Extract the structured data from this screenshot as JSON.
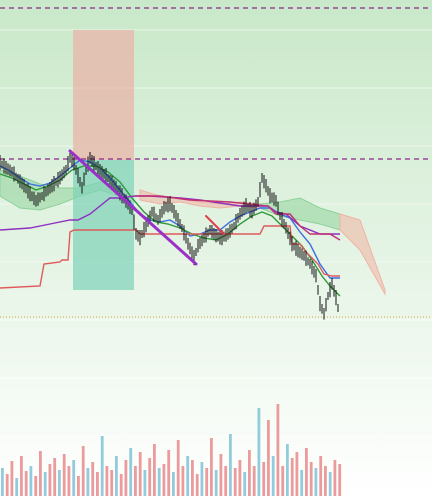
{
  "chart_data": {
    "type": "line",
    "title": "",
    "xlabel": "",
    "ylabel": "",
    "grid": true,
    "legend": "none",
    "x_range": [
      0,
      340
    ],
    "y_range": [
      0,
      496
    ],
    "background": {
      "top": "#c9e8c9",
      "bottom": "#ffffff"
    },
    "reference_lines": [
      {
        "name": "upper-dashed-level",
        "y": 488,
        "color": "#8a2a8a",
        "style": "dashed"
      },
      {
        "name": "mid-dashed-level",
        "y": 337,
        "color": "#8a2a8a",
        "style": "dashed"
      },
      {
        "name": "current-price-level",
        "y": 179,
        "color": "#d6b25a",
        "style": "dotted"
      }
    ],
    "position_box": {
      "x_start": 73,
      "x_end": 134,
      "entry": 336,
      "stop": 466,
      "target": 206,
      "risk_color": "#e8b4a8",
      "reward_color": "#7dd1b8"
    },
    "price_series": {
      "name": "",
      "color": "#111111",
      "points": [
        [
          0,
          333
        ],
        [
          6,
          328
        ],
        [
          12,
          324
        ],
        [
          18,
          317
        ],
        [
          24,
          310
        ],
        [
          30,
          302
        ],
        [
          36,
          295
        ],
        [
          42,
          300
        ],
        [
          48,
          306
        ],
        [
          54,
          312
        ],
        [
          60,
          318
        ],
        [
          66,
          326
        ],
        [
          70,
          338
        ],
        [
          74,
          332
        ],
        [
          78,
          320
        ],
        [
          82,
          308
        ],
        [
          86,
          325
        ],
        [
          90,
          338
        ],
        [
          94,
          332
        ],
        [
          98,
          328
        ],
        [
          104,
          322
        ],
        [
          110,
          316
        ],
        [
          116,
          308
        ],
        [
          122,
          300
        ],
        [
          128,
          292
        ],
        [
          132,
          285
        ],
        [
          136,
          262
        ],
        [
          140,
          258
        ],
        [
          146,
          270
        ],
        [
          152,
          284
        ],
        [
          158,
          276
        ],
        [
          164,
          288
        ],
        [
          170,
          292
        ],
        [
          176,
          280
        ],
        [
          182,
          268
        ],
        [
          188,
          252
        ],
        [
          194,
          238
        ],
        [
          198,
          250
        ],
        [
          204,
          258
        ],
        [
          210,
          266
        ],
        [
          216,
          260
        ],
        [
          222,
          258
        ],
        [
          228,
          262
        ],
        [
          234,
          270
        ],
        [
          240,
          282
        ],
        [
          246,
          290
        ],
        [
          252,
          284
        ],
        [
          258,
          294
        ],
        [
          262,
          318
        ],
        [
          266,
          310
        ],
        [
          270,
          300
        ],
        [
          276,
          295
        ],
        [
          280,
          280
        ],
        [
          286,
          268
        ],
        [
          292,
          252
        ],
        [
          298,
          245
        ],
        [
          304,
          240
        ],
        [
          310,
          232
        ],
        [
          316,
          220
        ],
        [
          320,
          192
        ],
        [
          324,
          182
        ],
        [
          328,
          200
        ],
        [
          332,
          212
        ],
        [
          336,
          198
        ],
        [
          340,
          178
        ]
      ]
    },
    "lines": [
      {
        "name": "",
        "color": "#3d6fe0",
        "points": [
          [
            0,
            330
          ],
          [
            10,
            325
          ],
          [
            20,
            318
          ],
          [
            30,
            312
          ],
          [
            40,
            310
          ],
          [
            50,
            313
          ],
          [
            60,
            320
          ],
          [
            70,
            328
          ],
          [
            80,
            336
          ],
          [
            90,
            334
          ],
          [
            100,
            328
          ],
          [
            110,
            318
          ],
          [
            120,
            306
          ],
          [
            130,
            294
          ],
          [
            140,
            282
          ],
          [
            150,
            276
          ],
          [
            160,
            274
          ],
          [
            170,
            276
          ],
          [
            180,
            270
          ],
          [
            190,
            260
          ],
          [
            200,
            262
          ],
          [
            210,
            266
          ],
          [
            220,
            266
          ],
          [
            230,
            274
          ],
          [
            240,
            280
          ],
          [
            250,
            284
          ],
          [
            260,
            288
          ],
          [
            270,
            288
          ],
          [
            280,
            282
          ],
          [
            290,
            278
          ],
          [
            300,
            264
          ],
          [
            310,
            252
          ],
          [
            320,
            232
          ],
          [
            330,
            218
          ],
          [
            340,
            218
          ]
        ]
      },
      {
        "name": "",
        "color": "#2e9a3a",
        "points": [
          [
            0,
            322
          ],
          [
            12,
            318
          ],
          [
            24,
            312
          ],
          [
            36,
            306
          ],
          [
            48,
            310
          ],
          [
            60,
            316
          ],
          [
            72,
            326
          ],
          [
            84,
            330
          ],
          [
            96,
            330
          ],
          [
            108,
            324
          ],
          [
            120,
            314
          ],
          [
            132,
            298
          ],
          [
            144,
            284
          ],
          [
            156,
            274
          ],
          [
            168,
            272
          ],
          [
            180,
            268
          ],
          [
            192,
            262
          ],
          [
            204,
            258
          ],
          [
            216,
            256
          ],
          [
            228,
            262
          ],
          [
            240,
            272
          ],
          [
            252,
            280
          ],
          [
            262,
            284
          ],
          [
            272,
            280
          ],
          [
            282,
            270
          ],
          [
            292,
            260
          ],
          [
            302,
            250
          ],
          [
            312,
            236
          ],
          [
            322,
            220
          ],
          [
            330,
            210
          ],
          [
            340,
            200
          ]
        ]
      },
      {
        "name": "",
        "color": "#8e2fbf",
        "points": [
          [
            0,
            266
          ],
          [
            30,
            268
          ],
          [
            50,
            272
          ],
          [
            70,
            276
          ],
          [
            78,
            276
          ],
          [
            90,
            282
          ],
          [
            100,
            290
          ],
          [
            110,
            298
          ],
          [
            120,
            298
          ],
          [
            135,
            300
          ],
          [
            150,
            300
          ],
          [
            180,
            298
          ],
          [
            200,
            296
          ],
          [
            240,
            290
          ],
          [
            268,
            290
          ],
          [
            276,
            284
          ],
          [
            286,
            282
          ],
          [
            300,
            270
          ],
          [
            320,
            262
          ],
          [
            330,
            262
          ],
          [
            340,
            262
          ]
        ]
      },
      {
        "name": "",
        "color": "#e05a5a",
        "points": [
          [
            0,
            208
          ],
          [
            40,
            210
          ],
          [
            44,
            232
          ],
          [
            60,
            234
          ],
          [
            62,
            236
          ],
          [
            68,
            236
          ],
          [
            70,
            264
          ],
          [
            74,
            266
          ],
          [
            136,
            266
          ],
          [
            140,
            262
          ],
          [
            260,
            262
          ],
          [
            264,
            270
          ],
          [
            290,
            270
          ],
          [
            292,
            252
          ],
          [
            300,
            252
          ],
          [
            306,
            244
          ],
          [
            312,
            238
          ],
          [
            318,
            232
          ],
          [
            324,
            222
          ],
          [
            332,
            220
          ],
          [
            340,
            220
          ]
        ]
      },
      {
        "name": "",
        "color": "#c23070",
        "points": [
          [
            135,
            300
          ],
          [
            160,
            300
          ],
          [
            190,
            296
          ],
          [
            230,
            294
          ],
          [
            268,
            290
          ],
          [
            276,
            282
          ],
          [
            290,
            282
          ],
          [
            300,
            270
          ],
          [
            310,
            262
          ],
          [
            320,
            262
          ],
          [
            330,
            262
          ],
          [
            340,
            256
          ]
        ]
      }
    ],
    "cloud": {
      "green_color": "#8fd19a",
      "red_color": "#f0b3a3",
      "upper_line": [
        [
          0,
          326
        ],
        [
          20,
          320
        ],
        [
          40,
          312
        ],
        [
          60,
          308
        ],
        [
          80,
          308
        ],
        [
          100,
          314
        ],
        [
          120,
          310
        ],
        [
          140,
          306
        ],
        [
          160,
          300
        ],
        [
          180,
          298
        ],
        [
          200,
          294
        ],
        [
          220,
          292
        ],
        [
          240,
          294
        ],
        [
          260,
          292
        ],
        [
          280,
          294
        ],
        [
          300,
          298
        ],
        [
          320,
          288
        ],
        [
          340,
          282
        ],
        [
          360,
          276
        ],
        [
          385,
          206
        ]
      ],
      "lower_line": [
        [
          0,
          300
        ],
        [
          20,
          288
        ],
        [
          40,
          286
        ],
        [
          60,
          292
        ],
        [
          80,
          300
        ],
        [
          100,
          306
        ],
        [
          120,
          300
        ],
        [
          140,
          296
        ],
        [
          160,
          292
        ],
        [
          180,
          294
        ],
        [
          200,
          290
        ],
        [
          220,
          288
        ],
        [
          240,
          290
        ],
        [
          260,
          288
        ],
        [
          280,
          280
        ],
        [
          300,
          276
        ],
        [
          320,
          272
        ],
        [
          340,
          266
        ],
        [
          360,
          246
        ],
        [
          385,
          202
        ]
      ],
      "green_spans": [
        [
          0,
          125
        ],
        [
          260,
          340
        ]
      ],
      "red_spans": [
        [
          125,
          260
        ],
        [
          340,
          385
        ]
      ]
    },
    "trendlines": [
      {
        "name": "falling-trendline",
        "color": "#9b30c9",
        "points": [
          [
            70,
            345
          ],
          [
            196,
            232
          ]
        ],
        "width": 3
      },
      {
        "name": "short-red-line",
        "color": "#e0404a",
        "points": [
          [
            206,
            280
          ],
          [
            224,
            262
          ]
        ],
        "width": 2
      }
    ],
    "volume": {
      "colors": {
        "up": "#7fc3d6",
        "down": "#e88a8a"
      },
      "values": [
        28,
        22,
        35,
        18,
        40,
        25,
        30,
        20,
        45,
        24,
        32,
        38,
        26,
        42,
        30,
        36,
        20,
        50,
        28,
        34,
        24,
        60,
        30,
        26,
        40,
        22,
        36,
        48,
        30,
        44,
        26,
        38,
        52,
        28,
        32,
        46,
        24,
        56,
        30,
        40,
        36,
        22,
        34,
        28,
        58,
        26,
        42,
        30,
        62,
        28,
        36,
        24,
        46,
        30,
        88,
        34,
        76,
        40,
        92,
        30,
        52,
        38,
        44,
        26,
        48,
        34,
        28,
        40,
        30,
        24,
        36,
        32
      ]
    }
  }
}
